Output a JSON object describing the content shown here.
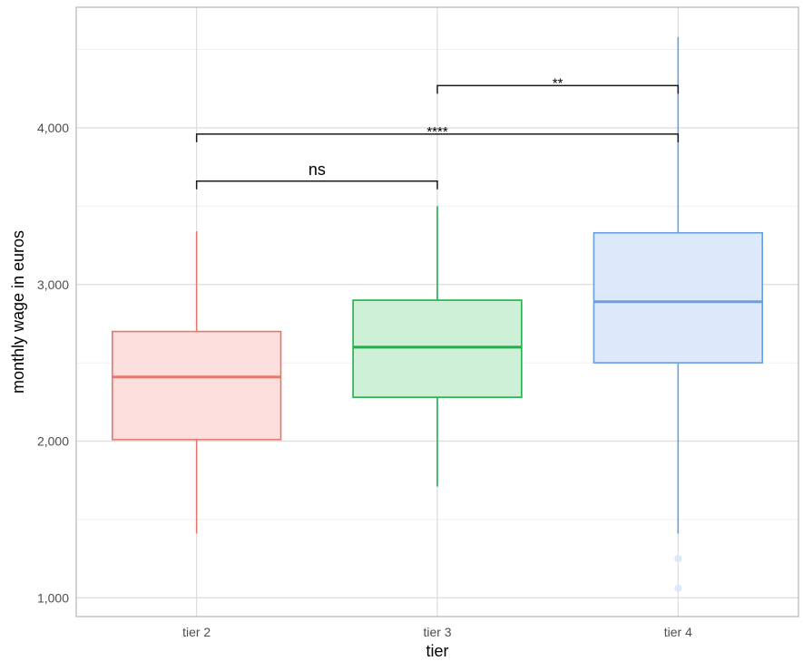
{
  "chart_data": {
    "type": "boxplot",
    "xlabel": "tier",
    "ylabel": "monthly wage in euros",
    "ylim": [
      880,
      4770
    ],
    "yticks": [
      1000,
      2000,
      3000,
      4000
    ],
    "ytick_labels": [
      "1,000",
      "2,000",
      "3,000",
      "4,000"
    ],
    "grid": true,
    "categories": [
      "tier 2",
      "tier 3",
      "tier 4"
    ],
    "boxes": [
      {
        "category": "tier 2",
        "whisker_low": 1410,
        "q1": 2010,
        "median": 2410,
        "q3": 2700,
        "whisker_high": 3340,
        "outliers": [],
        "color": "#e8776f",
        "fill": "#fde0de"
      },
      {
        "category": "tier 3",
        "whisker_low": 1710,
        "q1": 2280,
        "median": 2600,
        "q3": 2900,
        "whisker_high": 3500,
        "outliers": [],
        "color": "#1fb04a",
        "fill": "#cdf0d6"
      },
      {
        "category": "tier 4",
        "whisker_low": 1410,
        "q1": 2500,
        "median": 2890,
        "q3": 3330,
        "whisker_high": 4580,
        "outliers": [
          1250,
          1060
        ],
        "color": "#6a9fdf",
        "fill": "#dce9fb"
      }
    ],
    "comparisons": [
      {
        "from": "tier 2",
        "to": "tier 3",
        "y": 3660,
        "label": "ns"
      },
      {
        "from": "tier 2",
        "to": "tier 4",
        "y": 3960,
        "label": "****"
      },
      {
        "from": "tier 3",
        "to": "tier 4",
        "y": 4270,
        "label": "**"
      }
    ]
  }
}
